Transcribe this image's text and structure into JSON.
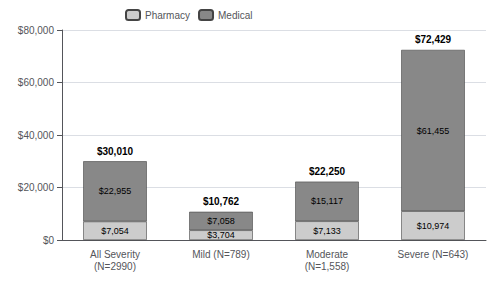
{
  "chart_data": {
    "type": "bar",
    "stacked": true,
    "categories": [
      "All Severity\n(N=2990)",
      "Mild (N=789)",
      "Moderate\n(N=1,558)",
      "Severe (N=643)"
    ],
    "series": [
      {
        "name": "Pharmacy",
        "color": "#cccccc",
        "values": [
          7054,
          3704,
          7133,
          10974
        ],
        "value_labels": [
          "$7,054",
          "$3,704",
          "$7,133",
          "$10,974"
        ]
      },
      {
        "name": "Medical",
        "color": "#888888",
        "values": [
          22955,
          7058,
          15117,
          61455
        ],
        "value_labels": [
          "$22,955",
          "$7,058",
          "$15,117",
          "$61,455"
        ]
      }
    ],
    "annotations": [
      "$30,010",
      "$10,762",
      "$22,250",
      "$72,429"
    ],
    "data_labels": true,
    "ylim": [
      0,
      80000
    ],
    "yticks": [
      {
        "value": 0,
        "label": "$0"
      },
      {
        "value": 20000,
        "label": "$20,000"
      },
      {
        "value": 40000,
        "label": "$40,000"
      },
      {
        "value": 60000,
        "label": "$60,000"
      },
      {
        "value": 80000,
        "label": "$80,000"
      }
    ],
    "grid": true,
    "legend": "upper left"
  }
}
